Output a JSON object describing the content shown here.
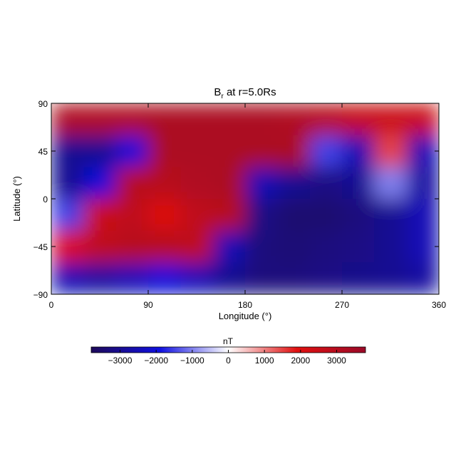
{
  "chart_data": {
    "type": "heatmap",
    "title": "B",
    "title_sub": "r",
    "title_rest": " at r=5.0Rs",
    "x_label": "Longitude (°)",
    "y_label": "Latitude (°)",
    "x": [
      15,
      45,
      75,
      105,
      135,
      165,
      195,
      225,
      255,
      285,
      315,
      345
    ],
    "y": [
      75,
      45,
      15,
      -15,
      -45,
      -75
    ],
    "z": [
      [
        3200,
        3200,
        3200,
        3300,
        3300,
        3300,
        3300,
        3200,
        3000,
        2600,
        2500,
        2500
      ],
      [
        -3000,
        -3000,
        -2000,
        3300,
        3300,
        3300,
        3300,
        3300,
        -1500,
        -2500,
        1500,
        -2500
      ],
      [
        -3000,
        -2000,
        3000,
        3000,
        3200,
        3300,
        -2500,
        -3000,
        -3200,
        -3000,
        -1000,
        -2800
      ],
      [
        -1500,
        2500,
        2800,
        2000,
        2800,
        3000,
        -3200,
        -3500,
        -3500,
        -3300,
        -3000,
        -2500
      ],
      [
        2000,
        2800,
        3000,
        3000,
        2800,
        -2500,
        -3300,
        -3400,
        -3300,
        -3200,
        -3000,
        -2500
      ],
      [
        -2500,
        -2800,
        -2500,
        -2000,
        -2500,
        -3000,
        -3300,
        -3300,
        -3200,
        -3100,
        -3000,
        -2800
      ]
    ],
    "xlim": [
      0,
      360
    ],
    "xticks": [
      0,
      90,
      180,
      270,
      360
    ],
    "ylim": [
      -90,
      90
    ],
    "yticks": [
      {
        "value": -90,
        "label": "−90"
      },
      {
        "value": -45,
        "label": "−45"
      },
      0,
      45,
      90
    ],
    "colorbar_label": "nT",
    "clim": [
      -3800,
      3800
    ],
    "cticks": [
      {
        "value": -3000,
        "label": "−3000"
      },
      {
        "value": -2000,
        "label": "−2000"
      },
      {
        "value": -1000,
        "label": "−1000"
      },
      0,
      1000,
      2000,
      3000
    ],
    "colormap": [
      "#1e0a5a",
      "#1010e0",
      "#ffffff",
      "#e01010",
      "#9a0a28"
    ]
  }
}
